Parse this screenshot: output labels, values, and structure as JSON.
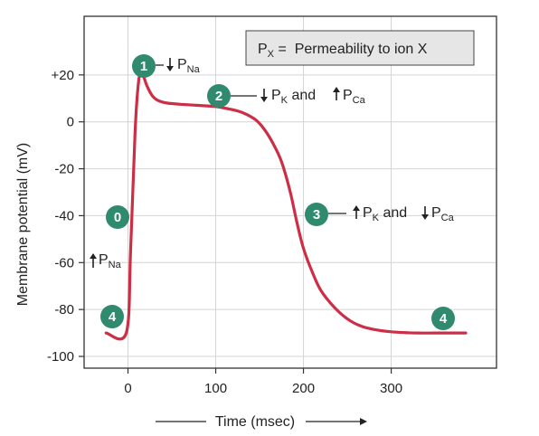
{
  "chart_data": {
    "type": "line",
    "xlabel": "Time (msec)",
    "ylabel": "Membrane potential (mV)",
    "xlim": [
      -50,
      420
    ],
    "ylim": [
      -105,
      45
    ],
    "xticks": [
      "0",
      "100",
      "200",
      "300"
    ],
    "yticks": [
      "+20",
      "0",
      "-20",
      "-40",
      "-60",
      "-80",
      "-100"
    ],
    "grid": true,
    "legend_box": {
      "p": "P",
      "sub": "X",
      "rest": " =  Permeability to ion X"
    },
    "series": [
      {
        "color": "#cc2e45",
        "x": [
          -25,
          -2,
          3,
          8,
          12,
          15,
          18,
          22,
          28,
          35,
          45,
          60,
          80,
          100,
          115,
          130,
          145,
          155,
          165,
          175,
          185,
          192,
          200,
          210,
          220,
          235,
          250,
          265,
          280,
          300,
          330,
          360,
          385
        ],
        "y": [
          -90,
          -90,
          -55,
          -5,
          17,
          20,
          19,
          15,
          11,
          9,
          8,
          7.5,
          7,
          6.5,
          5.5,
          4,
          1,
          -3,
          -9,
          -17,
          -30,
          -42,
          -54,
          -64,
          -72,
          -79,
          -84,
          -87,
          -88.5,
          -89.5,
          -90,
          -90,
          -90
        ]
      }
    ],
    "phases": [
      {
        "num": "1",
        "arrow": "down",
        "p": "P",
        "sub": "Na",
        "text2": ""
      },
      {
        "num": "2",
        "arrow": "down",
        "p": "P",
        "sub": "K",
        "text2": " and ",
        "arrow2": "up",
        "p2": "P",
        "sub2": "Ca"
      },
      {
        "num": "3",
        "arrow": "up",
        "p": "P",
        "sub": "K",
        "text2": " and ",
        "arrow2": "down",
        "p2": "P",
        "sub2": "Ca"
      },
      {
        "num": "0",
        "arrow": "up",
        "p": "P",
        "sub": "Na"
      },
      {
        "num": "4"
      },
      {
        "num": "4"
      }
    ],
    "colors": {
      "badge": "#2f8a6e",
      "curve": "#cc2e45",
      "grid": "#d4d4d4",
      "axis": "#333333",
      "box_fill": "#e6e6e6"
    }
  }
}
